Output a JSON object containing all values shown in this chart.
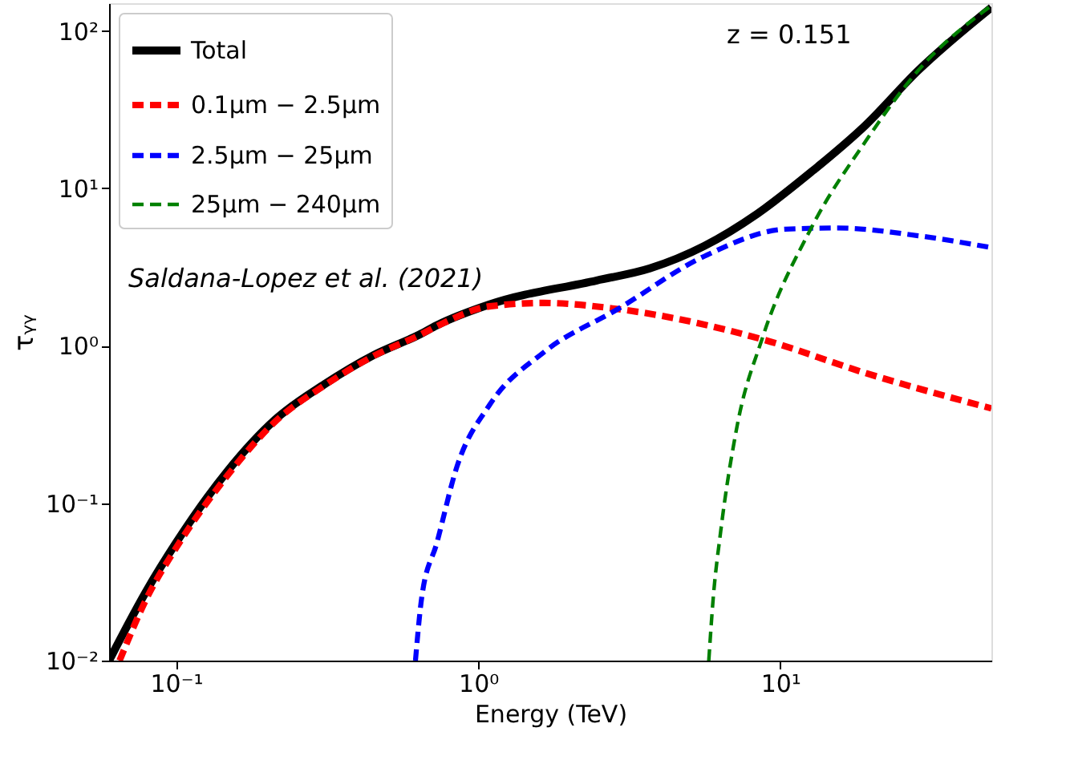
{
  "chart_data": {
    "type": "line",
    "xlabel": "Energy (TeV)",
    "ylabel": "τᵧᵧ",
    "log": "xy",
    "grid": false,
    "legend": "top left",
    "marker": "none",
    "xlim": [
      0.06,
      50
    ],
    "ylim": [
      0.01,
      150
    ],
    "xticks": [
      {
        "value": 0.1,
        "label": "10⁻¹"
      },
      {
        "value": 1,
        "label": "10⁰"
      },
      {
        "value": 10,
        "label": "10¹"
      }
    ],
    "yticks": [
      {
        "value": 0.01,
        "label": "10⁻²"
      },
      {
        "value": 0.1,
        "label": "10⁻¹"
      },
      {
        "value": 1,
        "label": "10⁰"
      },
      {
        "value": 10,
        "label": "10¹"
      },
      {
        "value": 100,
        "label": "10²"
      }
    ],
    "annotations": [
      "z = 0.151",
      "Saldana-Lopez et al. (2021)"
    ],
    "series": [
      {
        "name": "Total",
        "color": "#000000",
        "line_style": "solid",
        "x": [
          0.06,
          0.08,
          0.1,
          0.148,
          0.213,
          0.31,
          0.45,
          0.64,
          0.73,
          1.09,
          2.47,
          3.7,
          5.6,
          8.4,
          12.6,
          19.2,
          28.6,
          50
        ],
        "values": [
          0.01,
          0.028,
          0.056,
          0.16,
          0.34,
          0.57,
          0.87,
          1.18,
          1.35,
          1.83,
          2.6,
          3.1,
          4.3,
          6.9,
          12.6,
          25.3,
          56,
          141
        ]
      },
      {
        "name": "0.1μm − 2.5μm",
        "color": "#ff0000",
        "line_style": "dashed",
        "x": [
          0.065,
          0.08,
          0.1,
          0.148,
          0.213,
          0.31,
          0.45,
          0.64,
          0.73,
          1.09,
          1.65,
          2.9,
          8.7,
          19.2,
          50
        ],
        "values": [
          0.01,
          0.025,
          0.052,
          0.15,
          0.33,
          0.56,
          0.86,
          1.17,
          1.33,
          1.78,
          1.87,
          1.71,
          1.1,
          0.67,
          0.4
        ]
      },
      {
        "name": "2.5μm − 25μm",
        "color": "#0000ff",
        "line_style": "dashed",
        "x": [
          0.62,
          0.65,
          0.73,
          0.85,
          1.09,
          1.65,
          2.9,
          5.6,
          10.4,
          15.5,
          28.6,
          50
        ],
        "values": [
          0.01,
          0.025,
          0.056,
          0.17,
          0.42,
          0.91,
          1.71,
          3.7,
          5.5,
          5.6,
          5.0,
          4.2
        ]
      },
      {
        "name": "25μm − 240μm",
        "color": "#008000",
        "line_style": "dashed",
        "x": [
          5.8,
          6.0,
          6.35,
          7.2,
          8.7,
          12.6,
          19.2,
          28.6,
          50
        ],
        "values": [
          0.01,
          0.025,
          0.066,
          0.31,
          1.1,
          5.5,
          20,
          56,
          145
        ]
      }
    ]
  }
}
